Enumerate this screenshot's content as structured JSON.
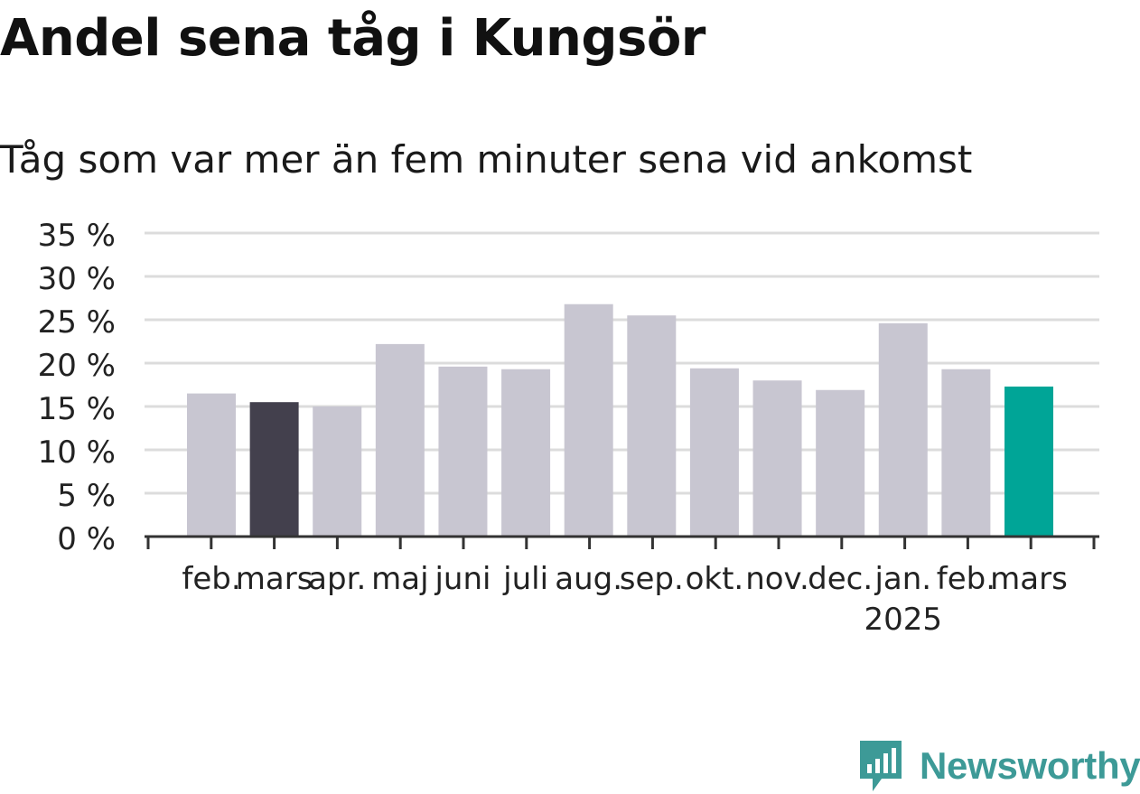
{
  "title": "Andel sena tåg i Kungsör",
  "subtitle": "Tåg som var mer än fem minuter sena vid ankomst",
  "brand": {
    "name": "Newsworthy",
    "color": "#3d9a97",
    "icon": "bar-chart-flag-icon"
  },
  "colors": {
    "default_bar": "#c8c6d1",
    "highlight_prev": "#43404d",
    "highlight_current": "#00a597",
    "grid": "#dcdcdc",
    "axis": "#333333"
  },
  "chart_data": {
    "type": "bar",
    "title": "Andel sena tåg i Kungsör",
    "subtitle": "Tåg som var mer än fem minuter sena vid ankomst",
    "categories": [
      "feb.",
      "mars",
      "apr.",
      "maj",
      "juni",
      "juli",
      "aug.",
      "sep.",
      "okt.",
      "nov.",
      "dec.",
      "jan.",
      "feb.",
      "mars"
    ],
    "year_label": "2025",
    "year_label_category_index": 11,
    "values": [
      16.5,
      15.5,
      15.0,
      22.2,
      19.6,
      19.3,
      26.8,
      25.5,
      19.4,
      18.0,
      16.9,
      24.6,
      19.3,
      17.3
    ],
    "highlight": {
      "1": "highlight_prev",
      "13": "highlight_current"
    },
    "ylim": [
      0,
      35
    ],
    "yticks": [
      0,
      5,
      10,
      15,
      20,
      25,
      30,
      35
    ],
    "ytick_suffix": " %",
    "grid": true,
    "xlabel": "",
    "ylabel": ""
  }
}
